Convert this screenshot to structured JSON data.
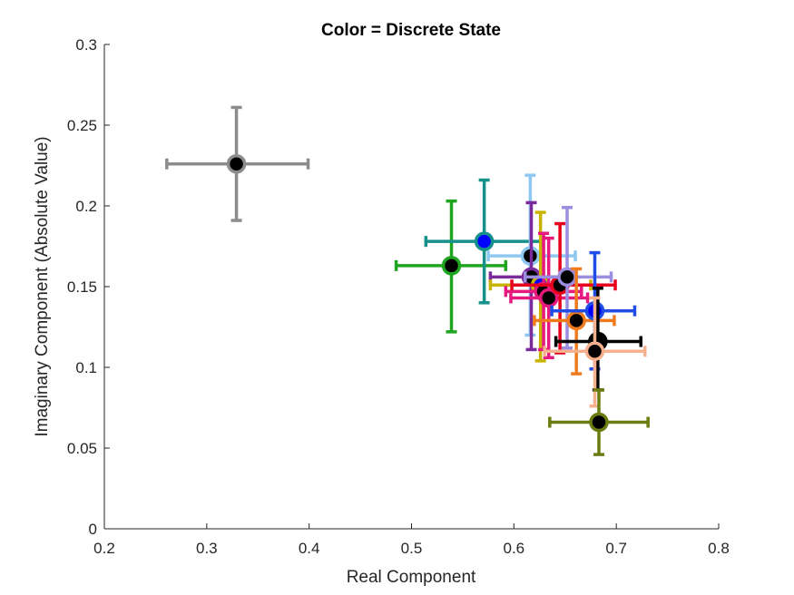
{
  "chart_data": {
    "type": "scatter",
    "title": "Color = Discrete State",
    "xlabel": "Real Component",
    "ylabel": "Imaginary Component (Absolute Value)",
    "xlim": [
      0.2,
      0.8
    ],
    "ylim": [
      0,
      0.3
    ],
    "xticks": [
      "0.2",
      "0.3",
      "0.4",
      "0.5",
      "0.6",
      "0.7",
      "0.8"
    ],
    "yticks": [
      "0",
      "0.05",
      "0.1",
      "0.15",
      "0.2",
      "0.25",
      "0.3"
    ],
    "grid": false,
    "legend": "none",
    "error_bars": "horizontal and vertical",
    "points": [
      {
        "x": 0.329,
        "y": 0.226,
        "xerr": [
          0.261,
          0.399
        ],
        "yerr": [
          0.191,
          0.261
        ],
        "color": "#8c8c8c",
        "fill": "#000000"
      },
      {
        "x": 0.539,
        "y": 0.163,
        "xerr": [
          0.485,
          0.592
        ],
        "yerr": [
          0.122,
          0.203
        ],
        "color": "#1fa51f",
        "fill": "#000000"
      },
      {
        "x": 0.571,
        "y": 0.178,
        "xerr": [
          0.514,
          0.628
        ],
        "yerr": [
          0.14,
          0.216
        ],
        "color": "#16908a",
        "fill": "#0000ff"
      },
      {
        "x": 0.616,
        "y": 0.169,
        "xerr": [
          0.575,
          0.66
        ],
        "yerr": [
          0.12,
          0.219
        ],
        "color": "#8ec8f0",
        "fill": "#000000"
      },
      {
        "x": 0.617,
        "y": 0.156,
        "xerr": [
          0.577,
          0.656
        ],
        "yerr": [
          0.111,
          0.202
        ],
        "color": "#7a2a9a",
        "fill": "#000000"
      },
      {
        "x": 0.626,
        "y": 0.151,
        "xerr": [
          0.577,
          0.675
        ],
        "yerr": [
          0.104,
          0.196
        ],
        "color": "#c8b400",
        "fill": "#0000ff"
      },
      {
        "x": 0.629,
        "y": 0.147,
        "xerr": [
          0.592,
          0.666
        ],
        "yerr": [
          0.111,
          0.183
        ],
        "color": "#e6197f",
        "fill": "#000000"
      },
      {
        "x": 0.634,
        "y": 0.143,
        "xerr": [
          0.597,
          0.672
        ],
        "yerr": [
          0.106,
          0.18
        ],
        "color": "#e6197f",
        "fill": "#000000"
      },
      {
        "x": 0.645,
        "y": 0.151,
        "xerr": [
          0.598,
          0.699
        ],
        "yerr": [
          0.109,
          0.189
        ],
        "color": "#e6001c",
        "fill": "#000000"
      },
      {
        "x": 0.652,
        "y": 0.156,
        "xerr": [
          0.611,
          0.695
        ],
        "yerr": [
          0.112,
          0.199
        ],
        "color": "#9b8ee0",
        "fill": "#000000"
      },
      {
        "x": 0.661,
        "y": 0.129,
        "xerr": [
          0.62,
          0.698
        ],
        "yerr": [
          0.096,
          0.161
        ],
        "color": "#f07b1e",
        "fill": "#000000"
      },
      {
        "x": 0.679,
        "y": 0.135,
        "xerr": [
          0.637,
          0.718
        ],
        "yerr": [
          0.099,
          0.171
        ],
        "color": "#1f4de6",
        "fill": "#0000ff"
      },
      {
        "x": 0.682,
        "y": 0.116,
        "xerr": [
          0.641,
          0.724
        ],
        "yerr": [
          0.086,
          0.149
        ],
        "color": "#000000",
        "fill": "#000000"
      },
      {
        "x": 0.679,
        "y": 0.11,
        "xerr": [
          0.63,
          0.728
        ],
        "yerr": [
          0.076,
          0.143
        ],
        "color": "#f5b08e",
        "fill": "#000000"
      },
      {
        "x": 0.683,
        "y": 0.066,
        "xerr": [
          0.635,
          0.731
        ],
        "yerr": [
          0.046,
          0.086
        ],
        "color": "#6b7c10",
        "fill": "#000000"
      }
    ]
  }
}
